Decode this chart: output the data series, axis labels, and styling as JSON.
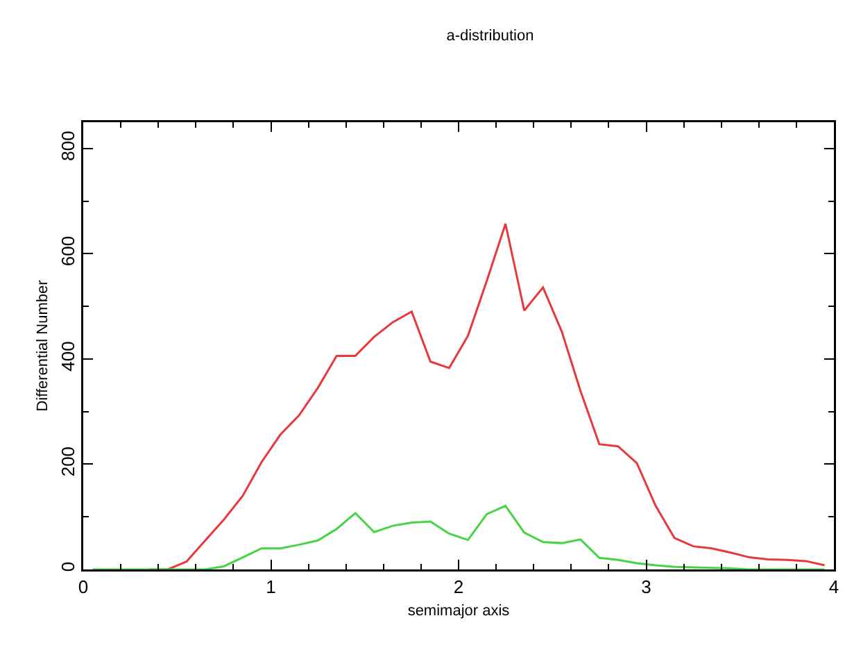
{
  "chart_data": {
    "type": "line",
    "title": "a-distribution",
    "xlabel": "semimajor axis",
    "ylabel": "Differential Number",
    "x": [
      0.05,
      0.15,
      0.25,
      0.35,
      0.45,
      0.55,
      0.65,
      0.75,
      0.85,
      0.95,
      1.05,
      1.15,
      1.25,
      1.35,
      1.45,
      1.55,
      1.65,
      1.75,
      1.85,
      1.95,
      2.05,
      2.15,
      2.25,
      2.35,
      2.45,
      2.55,
      2.65,
      2.75,
      2.85,
      2.95,
      3.05,
      3.15,
      3.25,
      3.35,
      3.45,
      3.55,
      3.65,
      3.75,
      3.85,
      3.95
    ],
    "series": [
      {
        "color": "#e8383d",
        "values": [
          null,
          null,
          null,
          0,
          0,
          15,
          55,
          95,
          140,
          204,
          256,
          293,
          345,
          406,
          406,
          442,
          470,
          490,
          395,
          383,
          444,
          548,
          657,
          492,
          536,
          452,
          339,
          238,
          234,
          202,
          121,
          60,
          44,
          40,
          32,
          23,
          19,
          18,
          16,
          8
        ]
      },
      {
        "color": "#44d444",
        "values": [
          0,
          0,
          0,
          0,
          0,
          0,
          0,
          6,
          23,
          40,
          40,
          47,
          55,
          77,
          107,
          71,
          83,
          89,
          91,
          68,
          56,
          105,
          121,
          70,
          52,
          50,
          57,
          22,
          18,
          12,
          8,
          5,
          4,
          3,
          2,
          0,
          0,
          0,
          0,
          0
        ]
      }
    ],
    "xlim": [
      0,
      4
    ],
    "xticks": [
      0,
      1,
      2,
      3,
      4
    ],
    "ylim": [
      0,
      850
    ],
    "yticks": [
      0,
      200,
      400,
      600,
      800
    ],
    "grid": false,
    "marker": "none",
    "line_style": "solid"
  }
}
